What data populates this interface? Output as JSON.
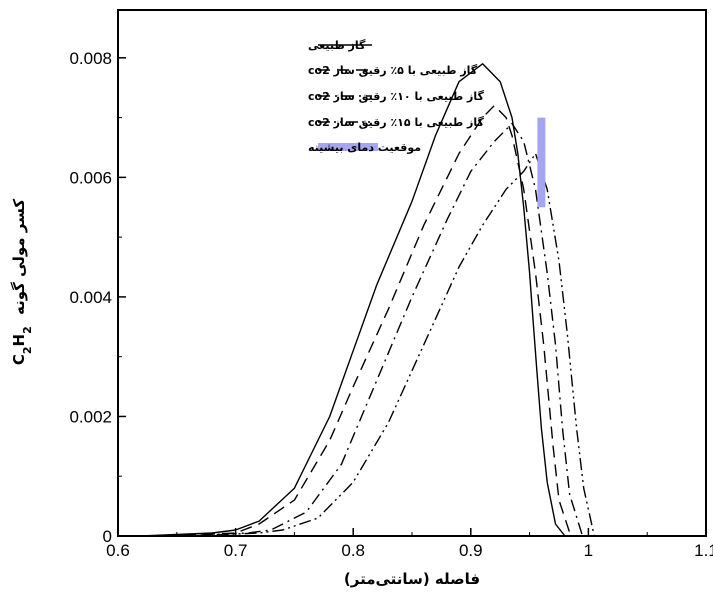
{
  "chart_data": {
    "type": "line",
    "xlabel": "فاصله (سانتی‌متر)",
    "ylabel_main": "کسر مولی گونه",
    "ylabel_formula": {
      "a": "C",
      "sub1": "2",
      "b": "H",
      "sub2": "2"
    },
    "xlim": [
      0.6,
      1.1
    ],
    "ylim": [
      0,
      0.0088
    ],
    "x_ticks": [
      0.6,
      0.7,
      0.8,
      0.9,
      1.0,
      1.1
    ],
    "x_tick_labels": [
      "0.6",
      "0.7",
      "0.8",
      "0.9",
      "1",
      "1.1"
    ],
    "y_ticks": [
      0,
      0.002,
      0.004,
      0.006,
      0.008
    ],
    "y_tick_labels": [
      "0",
      "0.002",
      "0.004",
      "0.006",
      "0.008"
    ],
    "grid": false,
    "legend_position": "top-left",
    "series": [
      {
        "name": "گاز طبیعی",
        "dash": "solid",
        "x": [
          0.62,
          0.68,
          0.7,
          0.72,
          0.75,
          0.78,
          0.8,
          0.82,
          0.85,
          0.87,
          0.89,
          0.91,
          0.925,
          0.935,
          0.94,
          0.945,
          0.95,
          0.953,
          0.956,
          0.96,
          0.965,
          0.972,
          0.98
        ],
        "y": [
          0,
          5e-05,
          0.0001,
          0.00025,
          0.0008,
          0.002,
          0.0031,
          0.0042,
          0.0056,
          0.0067,
          0.0076,
          0.0079,
          0.0076,
          0.007,
          0.0064,
          0.0055,
          0.0044,
          0.0036,
          0.0028,
          0.0018,
          0.0009,
          0.0002,
          0
        ]
      },
      {
        "name": "گاز طبیعی با ۵٪ رقیق ساز co2",
        "dash": "dash",
        "x": [
          0.64,
          0.7,
          0.72,
          0.75,
          0.78,
          0.8,
          0.83,
          0.86,
          0.89,
          0.91,
          0.92,
          0.93,
          0.935,
          0.945,
          0.955,
          0.962,
          0.97,
          0.975,
          0.985
        ],
        "y": [
          0,
          5e-05,
          0.0002,
          0.0006,
          0.0016,
          0.0025,
          0.0038,
          0.0052,
          0.0064,
          0.007,
          0.0072,
          0.007,
          0.0067,
          0.0058,
          0.0044,
          0.0032,
          0.0015,
          0.0006,
          0
        ]
      },
      {
        "name": "گاز طبیعی با ۱۰٪ رقیق ساز co2",
        "dash": "dashdot",
        "x": [
          0.65,
          0.71,
          0.73,
          0.76,
          0.79,
          0.82,
          0.85,
          0.88,
          0.9,
          0.92,
          0.935,
          0.945,
          0.955,
          0.965,
          0.972,
          0.978,
          0.984,
          0.995
        ],
        "y": [
          0,
          5e-05,
          0.0001,
          0.0004,
          0.0012,
          0.0026,
          0.004,
          0.0053,
          0.0061,
          0.0066,
          0.0069,
          0.0066,
          0.0058,
          0.0044,
          0.0032,
          0.0018,
          0.0007,
          0
        ]
      },
      {
        "name": "گاز طبیعی با ۱۵٪ رقیق ساز co2",
        "dash": "dashdotdot",
        "x": [
          0.66,
          0.72,
          0.74,
          0.77,
          0.8,
          0.83,
          0.86,
          0.89,
          0.91,
          0.93,
          0.945,
          0.955,
          0.965,
          0.975,
          0.982,
          0.99,
          0.996,
          1.005
        ],
        "y": [
          0,
          5e-05,
          0.0001,
          0.0003,
          0.0009,
          0.0019,
          0.0032,
          0.0045,
          0.0052,
          0.0058,
          0.0061,
          0.0064,
          0.0058,
          0.0046,
          0.0034,
          0.0018,
          0.0008,
          0
        ]
      }
    ],
    "peak_marker": {
      "name": "موقعیت دمای بیشینه",
      "x": 0.96,
      "y_range": [
        0.0055,
        0.007
      ],
      "color": "#a6a6f0"
    }
  }
}
